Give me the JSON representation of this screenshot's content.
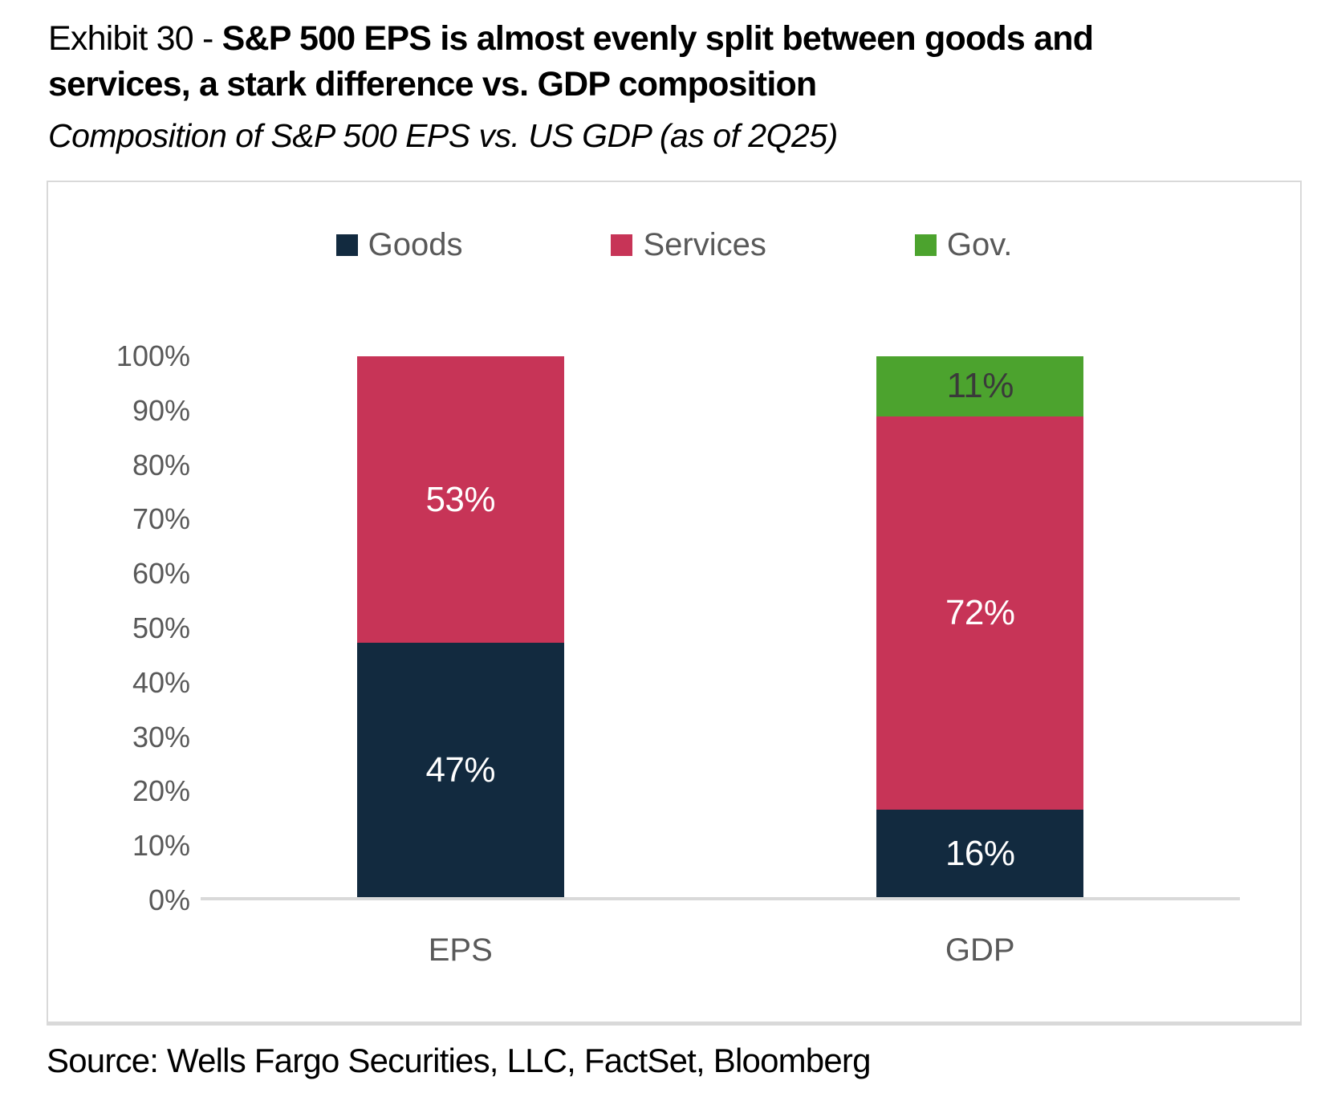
{
  "title": {
    "prefix": "Exhibit 30 - ",
    "emphasis": "S&P 500 EPS is almost evenly split between goods and services, a stark difference vs. GDP composition"
  },
  "subtitle": "Composition of S&P 500 EPS vs. US GDP (as of 2Q25)",
  "source": "Source: Wells Fargo Securities, LLC, FactSet, Bloomberg",
  "colors": {
    "goods": "#122A3F",
    "services": "#C73457",
    "gov": "#4CA32E",
    "axis_text": "#595959",
    "axis_line": "#D9D9D9",
    "panel_border": "#D9D9D9",
    "label_light": "#FFFFFF",
    "label_dark": "#3A3A3A"
  },
  "chart_data": {
    "type": "bar",
    "stacked": true,
    "title": "Composition of S&P 500 EPS vs. US GDP (as of 2Q25)",
    "categories": [
      "EPS",
      "GDP"
    ],
    "series": [
      {
        "name": "Goods",
        "color": "#122A3F",
        "label_color": "#FFFFFF",
        "values": [
          47,
          16
        ]
      },
      {
        "name": "Services",
        "color": "#C73457",
        "label_color": "#FFFFFF",
        "values": [
          53,
          72
        ]
      },
      {
        "name": "Gov.",
        "color": "#4CA32E",
        "label_color": "#3A3A3A",
        "values": [
          0,
          11
        ]
      }
    ],
    "ylim": [
      0,
      100
    ],
    "yticks": [
      "100%",
      "90%",
      "80%",
      "70%",
      "60%",
      "50%",
      "40%",
      "30%",
      "20%",
      "10%",
      "0%"
    ],
    "value_suffix": "%",
    "grid": false,
    "legend_position": "top"
  }
}
